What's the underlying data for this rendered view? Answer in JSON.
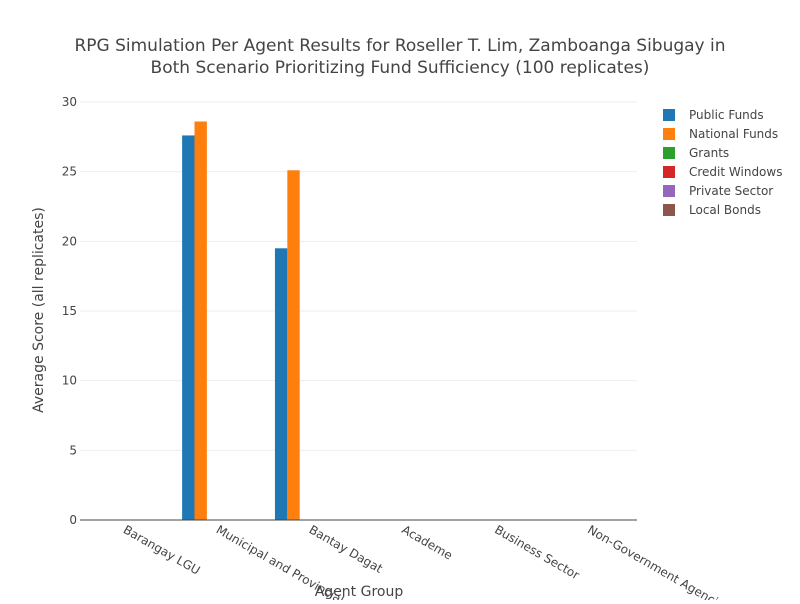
{
  "chart_data": {
    "type": "bar",
    "title_line1": "RPG Simulation Per Agent Results for Roseller T. Lim, Zamboanga Sibugay in",
    "title_line2": "Both Scenario Prioritizing Fund Sufficiency (100 replicates)",
    "xlabel": "Agent Group",
    "ylabel": "Average Score (all replicates)",
    "ylim": [
      0,
      30
    ],
    "yticks": [
      0,
      5,
      10,
      15,
      20,
      25,
      30
    ],
    "grid": true,
    "legend_position": "right",
    "categories": [
      "Barangay LGU",
      "Municipal and Provincial",
      "Bantay Dagat",
      "Academe",
      "Business Sector",
      "Non-Government Agencies"
    ],
    "series": [
      {
        "name": "Public Funds",
        "color": "#1f77b4",
        "values": [
          0,
          27.6,
          19.5,
          0,
          0,
          0
        ]
      },
      {
        "name": "National Funds",
        "color": "#ff7f0e",
        "values": [
          0,
          28.6,
          25.1,
          0,
          0,
          0
        ]
      },
      {
        "name": "Grants",
        "color": "#2ca02c",
        "values": [
          0,
          0,
          0,
          0,
          0,
          0
        ]
      },
      {
        "name": "Credit Windows",
        "color": "#d62728",
        "values": [
          0,
          0,
          0,
          0,
          0,
          0
        ]
      },
      {
        "name": "Private Sector",
        "color": "#9467bd",
        "values": [
          0,
          0,
          0,
          0,
          0,
          0
        ]
      },
      {
        "name": "Local Bonds",
        "color": "#8c564b",
        "values": [
          0,
          0,
          0,
          0,
          0,
          0
        ]
      }
    ]
  }
}
